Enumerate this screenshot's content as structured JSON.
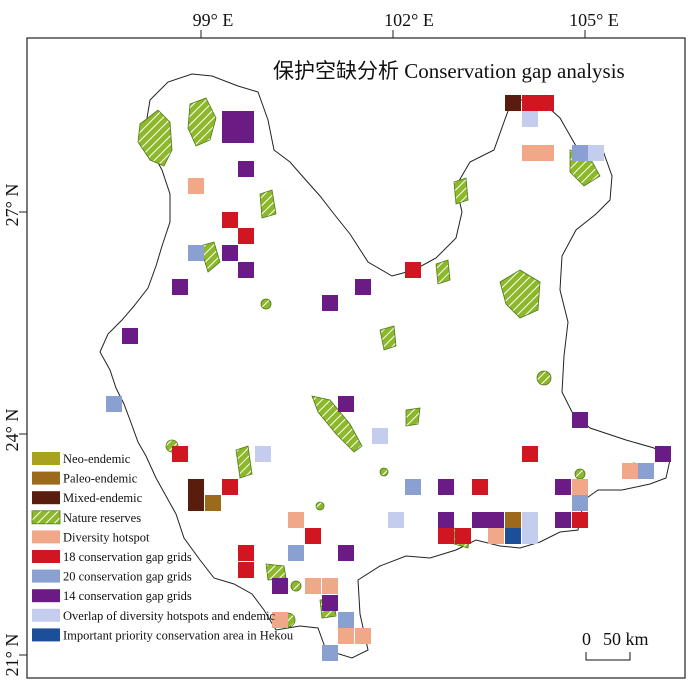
{
  "title": "保护空缺分析 Conservation gap analysis",
  "longitudes": [
    "99° E",
    "102° E",
    "105° E"
  ],
  "latitudes": [
    "27° N",
    "24° N",
    "21° N"
  ],
  "scale_bar": {
    "label_zero": "0",
    "label_distance": "50 km"
  },
  "legend": [
    {
      "label": "Neo-endemic",
      "color": "#a8a31c",
      "pattern": "solid"
    },
    {
      "label": "Paleo-endemic",
      "color": "#9c6a1a",
      "pattern": "solid"
    },
    {
      "label": "Mixed-endemic",
      "color": "#5a1c0c",
      "pattern": "solid"
    },
    {
      "label": "Nature reserves",
      "color": "#8cb82a",
      "pattern": "hatch"
    },
    {
      "label": "Diversity hotspot",
      "color": "#f0a888",
      "pattern": "solid"
    },
    {
      "label": "18 conservation gap grids",
      "color": "#d01620",
      "pattern": "solid"
    },
    {
      "label": "20 conservation gap grids",
      "color": "#8aa0d0",
      "pattern": "solid"
    },
    {
      "label": "14 conservation gap grids",
      "color": "#6a1c84",
      "pattern": "solid"
    },
    {
      "label": "Overlap of diversity hotspots and endemic",
      "color": "#c4cdee",
      "pattern": "solid"
    },
    {
      "label": "Important priority conservation area in Hekou",
      "color": "#1d4e9a",
      "pattern": "solid"
    }
  ]
}
